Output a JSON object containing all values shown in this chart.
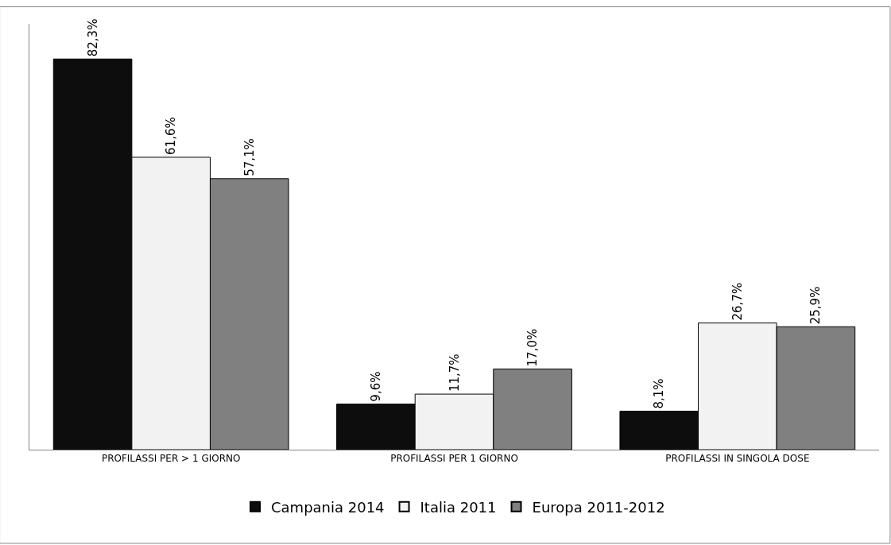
{
  "chart_data": {
    "type": "bar",
    "categories": [
      "PROFILASSI PER > 1 GIORNO",
      "PROFILASSI PER 1 GIORNO",
      "PROFILASSI IN SINGOLA DOSE"
    ],
    "series": [
      {
        "name": "Campania 2014",
        "color": "#0d0d0d",
        "values": [
          82.3,
          9.6,
          8.1
        ],
        "value_labels": [
          "82,3%",
          "9,6%",
          "8,1%"
        ]
      },
      {
        "name": "Italia 2011",
        "color": "#f2f2f2",
        "values": [
          61.6,
          11.7,
          26.7
        ],
        "value_labels": [
          "61,6%",
          "11,7%",
          "26,7%"
        ]
      },
      {
        "name": "Europa 2011-2012",
        "color": "#808080",
        "values": [
          57.1,
          17.0,
          25.9
        ],
        "value_labels": [
          "57,1%",
          "17,0%",
          "25,9%"
        ]
      }
    ],
    "legend": "bottom",
    "tick_labels": "x"
  }
}
